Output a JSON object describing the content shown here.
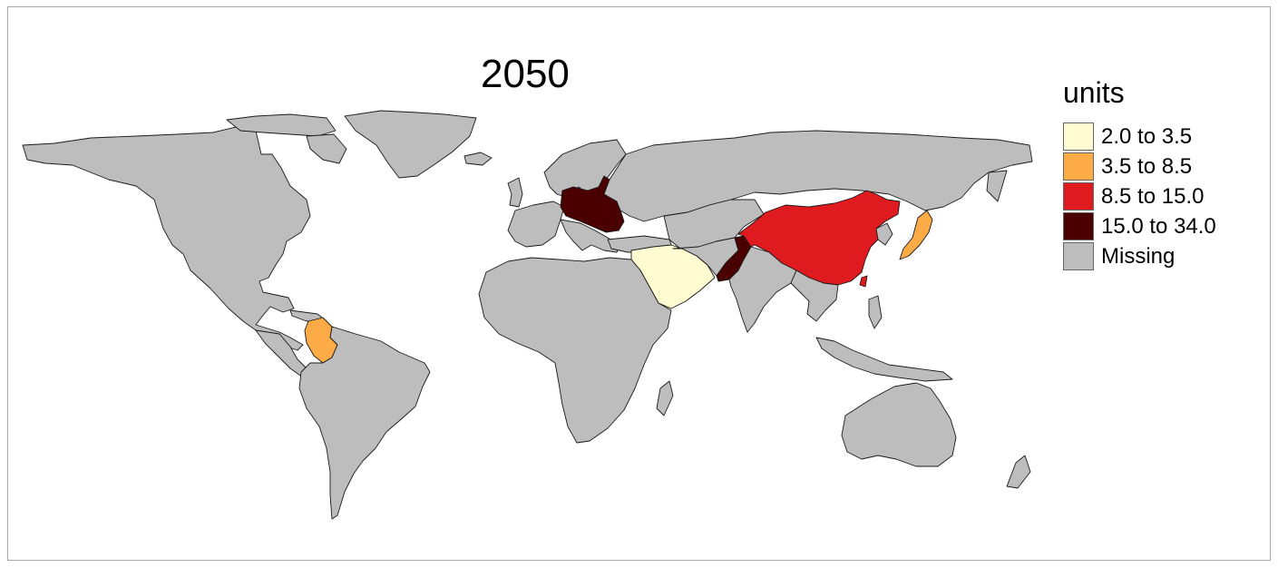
{
  "title": "2050",
  "legend": {
    "title": "units",
    "items": [
      {
        "label": "2.0 to 3.5",
        "color": "#fffcd2"
      },
      {
        "label": "3.5 to 8.5",
        "color": "#fdab47"
      },
      {
        "label": "8.5 to 15.0",
        "color": "#e01b1f"
      },
      {
        "label": "15.0 to 34.0",
        "color": "#4a0000"
      },
      {
        "label": "Missing",
        "color": "#bdbdbd"
      }
    ]
  },
  "colors": {
    "missing": "#bdbdbd",
    "border": "#1a1a1a",
    "frame": "#a6a6a6"
  },
  "highlighted_regions": [
    {
      "name": "Central/Eastern Europe",
      "legend_class": "15.0 to 34.0"
    },
    {
      "name": "Arabian Peninsula",
      "legend_class": "2.0 to 3.5"
    },
    {
      "name": "Pakistan",
      "legend_class": "15.0 to 34.0"
    },
    {
      "name": "China",
      "legend_class": "8.5 to 15.0"
    },
    {
      "name": "Japan",
      "legend_class": "3.5 to 8.5"
    },
    {
      "name": "Colombia",
      "legend_class": "3.5 to 8.5"
    }
  ]
}
